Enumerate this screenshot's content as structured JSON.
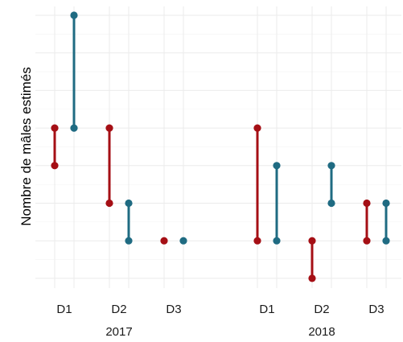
{
  "chart_data": {
    "type": "dumbbell",
    "ylabel": "Nombre de mâles estimés",
    "y_tick_labels_shown": false,
    "ylim": [
      0,
      7
    ],
    "y_major_ticks": [
      0,
      1,
      2,
      3,
      4,
      5,
      6,
      7
    ],
    "grid": true,
    "legend": "none",
    "groups": [
      {
        "year": "2017",
        "sites": [
          "D1",
          "D2",
          "D3"
        ]
      },
      {
        "year": "2018",
        "sites": [
          "D1",
          "D2",
          "D3"
        ]
      }
    ],
    "series": [
      {
        "color": "#a50f15",
        "segments": [
          {
            "year": "2017",
            "site": "D1",
            "low": 3,
            "high": 4
          },
          {
            "year": "2017",
            "site": "D2",
            "low": 2,
            "high": 4
          },
          {
            "year": "2017",
            "site": "D3",
            "low": 1,
            "high": 1
          },
          {
            "year": "2018",
            "site": "D1",
            "low": 1,
            "high": 4
          },
          {
            "year": "2018",
            "site": "D2",
            "low": 0,
            "high": 1
          },
          {
            "year": "2018",
            "site": "D3",
            "low": 1,
            "high": 2
          }
        ]
      },
      {
        "color": "#1f6b82",
        "segments": [
          {
            "year": "2017",
            "site": "D1",
            "low": 4,
            "high": 7
          },
          {
            "year": "2017",
            "site": "D2",
            "low": 1,
            "high": 2
          },
          {
            "year": "2017",
            "site": "D3",
            "low": 1,
            "high": 1
          },
          {
            "year": "2018",
            "site": "D1",
            "low": 1,
            "high": 3
          },
          {
            "year": "2018",
            "site": "D2",
            "low": 2,
            "high": 3
          },
          {
            "year": "2018",
            "site": "D3",
            "low": 1,
            "high": 2
          }
        ]
      }
    ]
  }
}
